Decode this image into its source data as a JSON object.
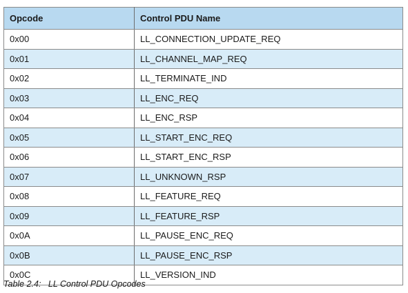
{
  "table": {
    "headers": [
      "Opcode",
      "Control PDU Name"
    ],
    "rows": [
      {
        "opcode": "0x00",
        "name": "LL_CONNECTION_UPDATE_REQ",
        "shaded": false
      },
      {
        "opcode": "0x01",
        "name": "LL_CHANNEL_MAP_REQ",
        "shaded": true
      },
      {
        "opcode": "0x02",
        "name": "LL_TERMINATE_IND",
        "shaded": false
      },
      {
        "opcode": "0x03",
        "name": "LL_ENC_REQ",
        "shaded": true
      },
      {
        "opcode": "0x04",
        "name": "LL_ENC_RSP",
        "shaded": false
      },
      {
        "opcode": "0x05",
        "name": "LL_START_ENC_REQ",
        "shaded": true
      },
      {
        "opcode": "0x06",
        "name": "LL_START_ENC_RSP",
        "shaded": false
      },
      {
        "opcode": "0x07",
        "name": "LL_UNKNOWN_RSP",
        "shaded": true
      },
      {
        "opcode": "0x08",
        "name": "LL_FEATURE_REQ",
        "shaded": false
      },
      {
        "opcode": "0x09",
        "name": "LL_FEATURE_RSP",
        "shaded": true
      },
      {
        "opcode": "0x0A",
        "name": "LL_PAUSE_ENC_REQ",
        "shaded": false
      },
      {
        "opcode": "0x0B",
        "name": "LL_PAUSE_ENC_RSP",
        "shaded": true
      },
      {
        "opcode": "0x0C",
        "name": "LL_VERSION_IND",
        "shaded": false
      }
    ]
  },
  "caption": {
    "label": "Table 2.4:",
    "title": "LL Control PDU Opcodes"
  },
  "colors": {
    "header_bg": "#b8d9f0",
    "shaded_row_bg": "#d8ecf8",
    "border": "#8a8a8a"
  }
}
